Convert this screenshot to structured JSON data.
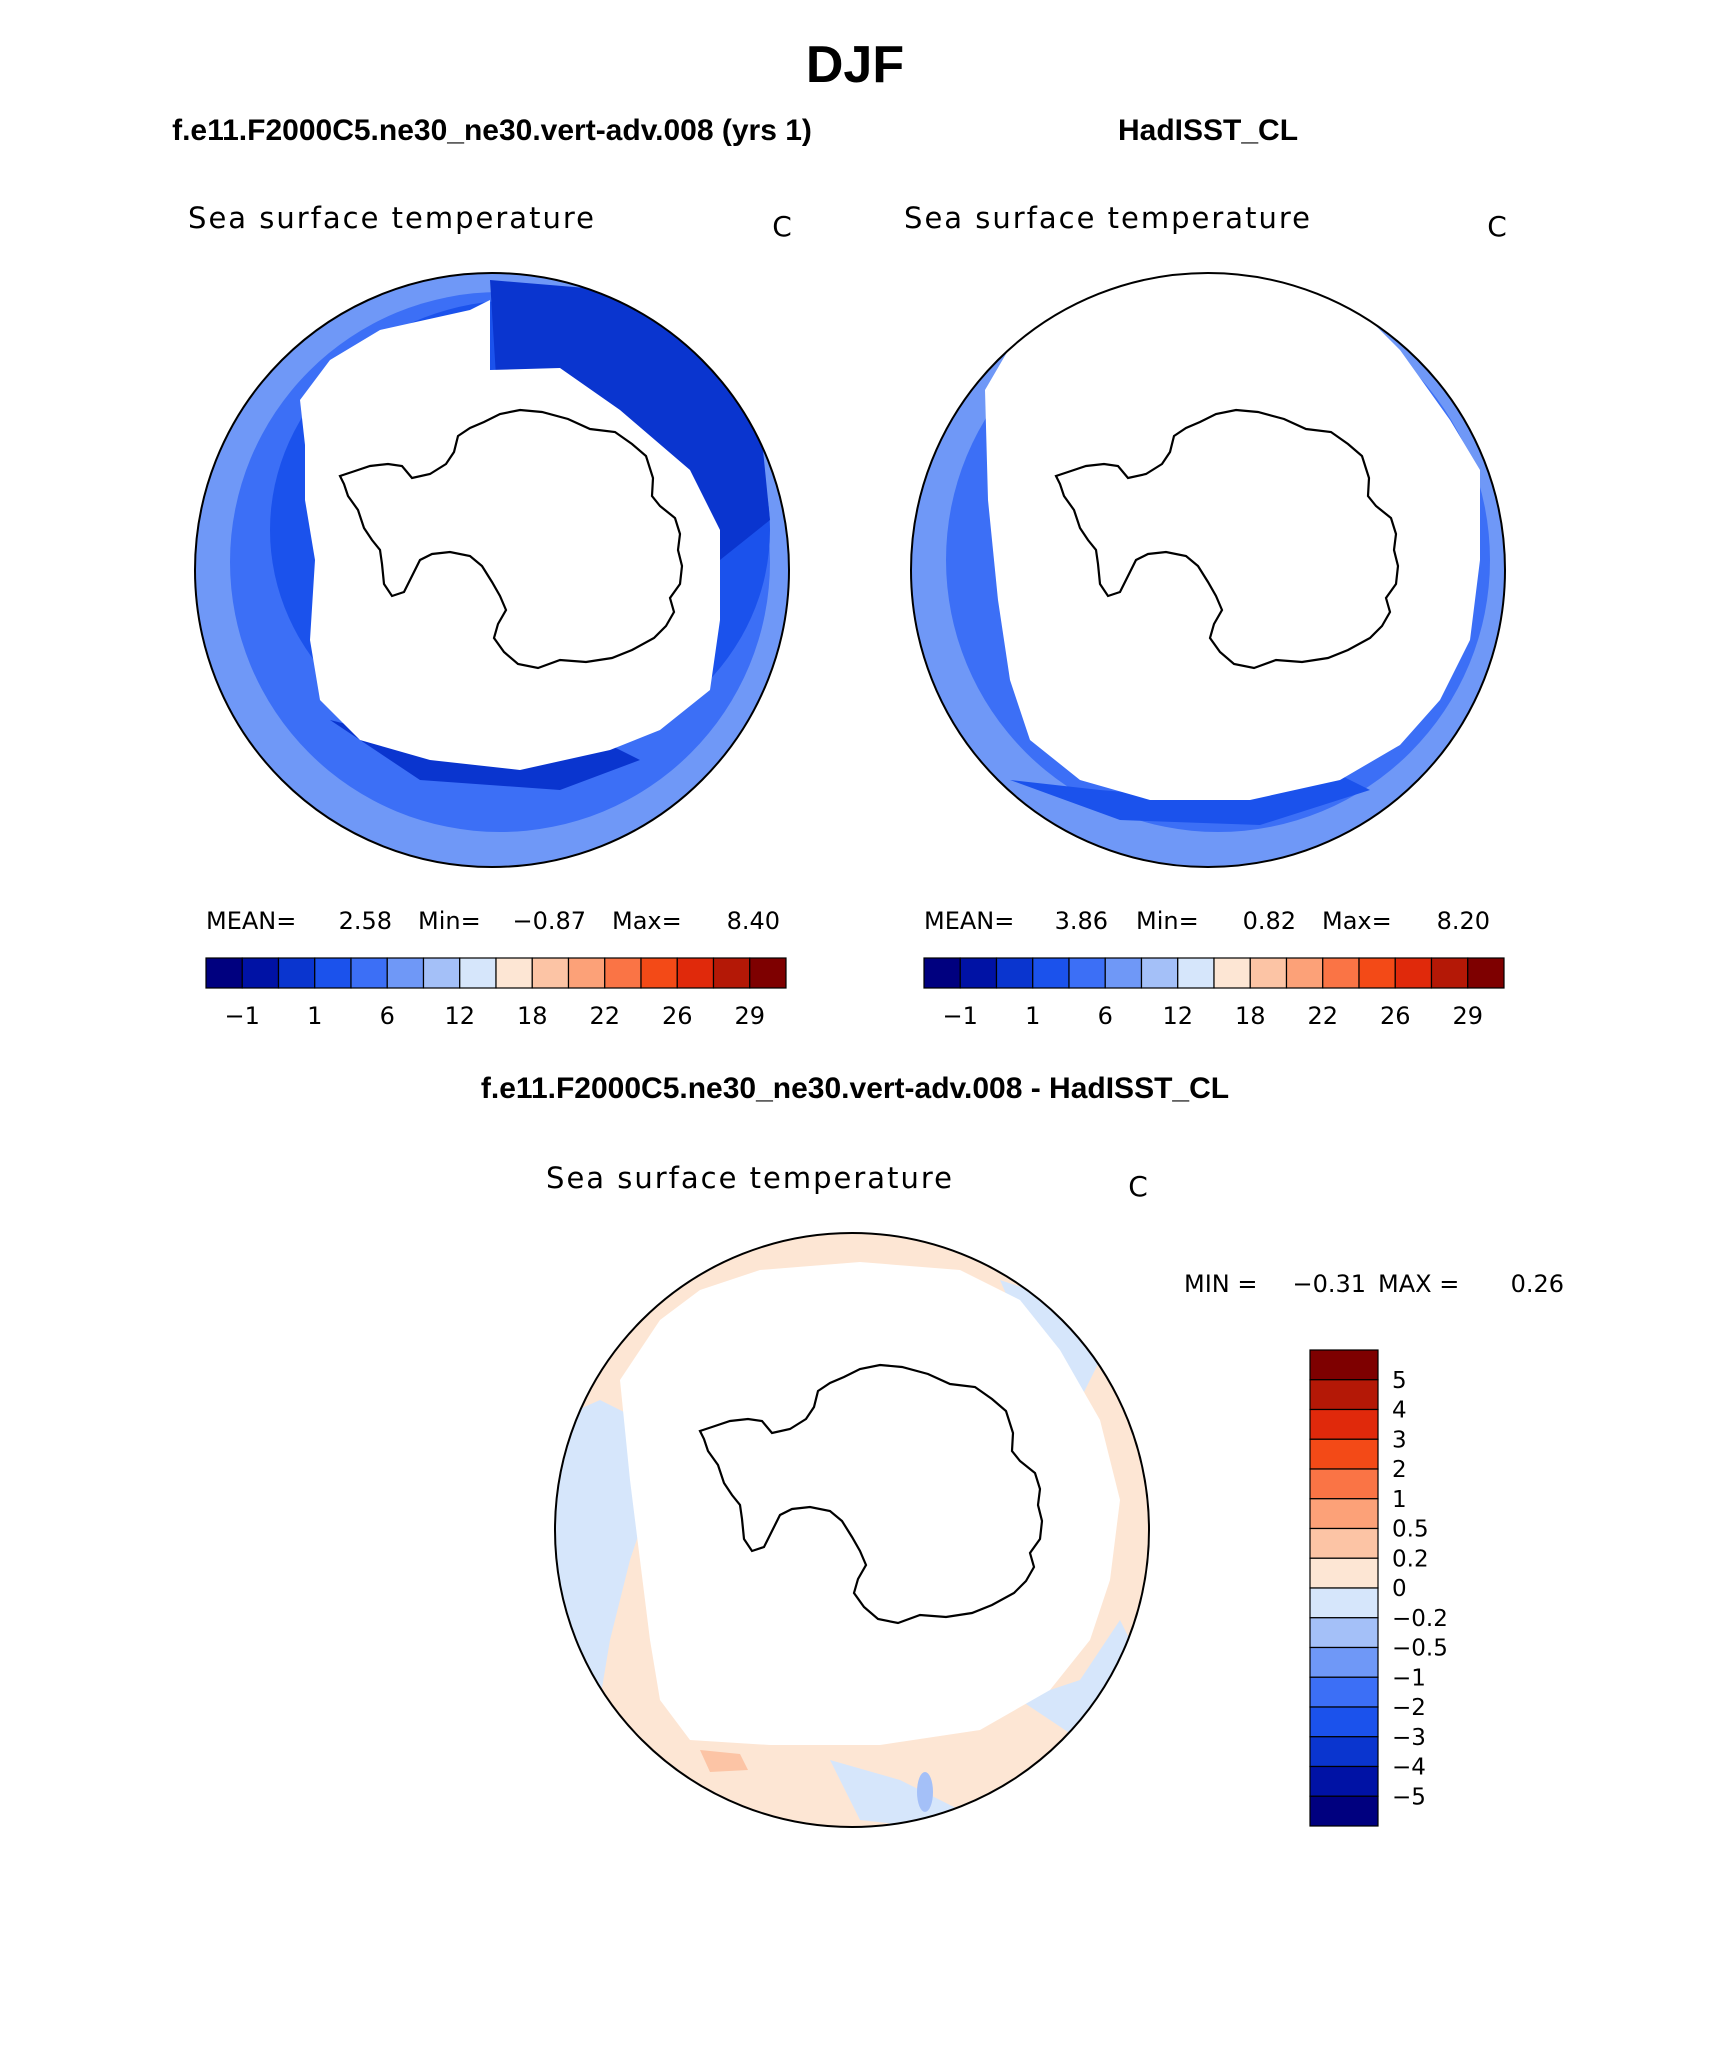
{
  "figure": {
    "title": "DJF",
    "top_left_header": "f.e11.F2000C5.ne30_ne30.vert-adv.008 (yrs 1)",
    "top_right_header": "HadISST_CL",
    "bottom_header": "f.e11.F2000C5.ne30_ne30.vert-adv.008 - HadISST_CL"
  },
  "chart_data": [
    {
      "type": "map",
      "projection": "south-polar-stereographic",
      "variable": "Sea surface temperature",
      "units": "C",
      "stats_labels": {
        "mean": "MEAN=",
        "min": "Min=",
        "max": "Max="
      },
      "stats": {
        "mean": "2.58",
        "min": "−0.87",
        "max": "8.40"
      },
      "colorbar": {
        "orientation": "horizontal",
        "tick_labels": [
          "−1",
          "1",
          "6",
          "12",
          "18",
          "22",
          "26",
          "29"
        ],
        "colors": [
          "#00007f",
          "#0012a5",
          "#0a35cf",
          "#1b52ec",
          "#3c6ff6",
          "#6f98f7",
          "#a4c0f8",
          "#d6e6fb",
          "#fde6d4",
          "#fcc4a5",
          "#fca178",
          "#fa7445",
          "#f34a17",
          "#e0290b",
          "#b41806",
          "#7e0000"
        ]
      },
      "observed_ranges": {
        "sst_min": -0.87,
        "sst_max": 8.4
      }
    },
    {
      "type": "map",
      "projection": "south-polar-stereographic",
      "variable": "Sea surface temperature",
      "units": "C",
      "stats_labels": {
        "mean": "MEAN=",
        "min": "Min=",
        "max": "Max="
      },
      "stats": {
        "mean": "3.86",
        "min": "0.82",
        "max": "8.20"
      },
      "colorbar": {
        "orientation": "horizontal",
        "tick_labels": [
          "−1",
          "1",
          "6",
          "12",
          "18",
          "22",
          "26",
          "29"
        ],
        "colors": [
          "#00007f",
          "#0012a5",
          "#0a35cf",
          "#1b52ec",
          "#3c6ff6",
          "#6f98f7",
          "#a4c0f8",
          "#d6e6fb",
          "#fde6d4",
          "#fcc4a5",
          "#fca178",
          "#fa7445",
          "#f34a17",
          "#e0290b",
          "#b41806",
          "#7e0000"
        ]
      },
      "observed_ranges": {
        "sst_min": 0.82,
        "sst_max": 8.2
      }
    },
    {
      "type": "map",
      "projection": "south-polar-stereographic",
      "variable": "Sea surface temperature",
      "units": "C",
      "stats_text": {
        "min_label": "MIN =",
        "min": "−0.31",
        "max_label": "MAX =",
        "max": "0.26"
      },
      "colorbar": {
        "orientation": "vertical",
        "tick_labels": [
          "5",
          "4",
          "3",
          "2",
          "1",
          "0.5",
          "0.2",
          "0",
          "−0.2",
          "−0.5",
          "−1",
          "−2",
          "−3",
          "−4",
          "−5"
        ],
        "colors": [
          "#7e0000",
          "#b41806",
          "#e0290b",
          "#f34a17",
          "#fa7445",
          "#fca178",
          "#fcc4a5",
          "#fde6d4",
          "#d6e6fb",
          "#a4c0f8",
          "#6f98f7",
          "#3c6ff6",
          "#1b52ec",
          "#0a35cf",
          "#0012a5",
          "#00007f"
        ]
      },
      "observed_ranges": {
        "diff_min": -0.31,
        "diff_max": 0.26
      }
    }
  ]
}
